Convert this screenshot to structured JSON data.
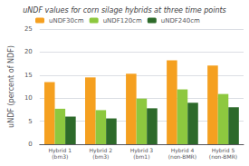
{
  "chart_data": {
    "type": "bar",
    "title": "uNDF values for corn silage hybrids at three time points",
    "ylabel": "uNDF (percent of NDF)",
    "categories": [
      "Hybrid 1\n(bm3)",
      "Hybrid 2\n(bm3)",
      "Hybrid 3\n(bm1)",
      "Hybrid 4\n(non-BMR)",
      "Hybrid 5\n(non-BMR)"
    ],
    "series": [
      {
        "name": "uNDF30cm",
        "color": "#F5A020",
        "values": [
          13.5,
          14.5,
          15.3,
          18.2,
          17.1
        ]
      },
      {
        "name": "uNDF120cm",
        "color": "#8DC83F",
        "values": [
          7.7,
          7.4,
          9.9,
          11.9,
          10.9
        ]
      },
      {
        "name": "uNDF240cm",
        "color": "#2D6A2A",
        "values": [
          6.0,
          5.6,
          7.8,
          9.0,
          8.0
        ]
      }
    ],
    "ylim": [
      0,
      25
    ],
    "yticks": [
      0,
      5,
      10,
      15,
      20,
      25
    ],
    "grid": true,
    "legend": "upper left"
  }
}
